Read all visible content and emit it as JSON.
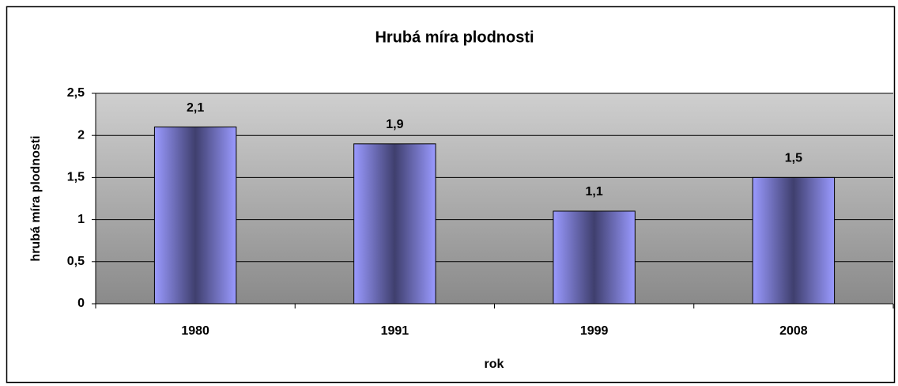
{
  "chart_data": {
    "type": "bar",
    "title": "Hrubá míra plodnosti",
    "x_label": "rok",
    "y_label": "hrubá míra plodnosti",
    "categories": [
      "1980",
      "1991",
      "1999",
      "2008"
    ],
    "values": [
      2.1,
      1.9,
      1.1,
      1.5
    ],
    "value_labels": [
      "2,1",
      "1,9",
      "1,1",
      "1,5"
    ],
    "color": "#9999ff",
    "ylim": [
      0,
      2.5
    ],
    "yticks": [
      0,
      {
        "value": 0.5,
        "label": "0,5"
      },
      1,
      {
        "value": 1.5,
        "label": "1,5"
      },
      2,
      {
        "value": 2.5,
        "label": "2,5"
      }
    ],
    "grid": true
  }
}
